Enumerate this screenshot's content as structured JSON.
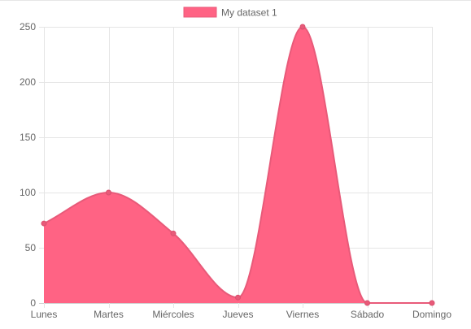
{
  "chart_data": {
    "type": "area",
    "categories": [
      "Lunes",
      "Martes",
      "Miércoles",
      "Jueves",
      "Viernes",
      "Sábado",
      "Domingo"
    ],
    "series": [
      {
        "name": "My dataset 1",
        "values": [
          72,
          100,
          63,
          5,
          250,
          0,
          0
        ]
      }
    ],
    "title": "",
    "xlabel": "",
    "ylabel": "",
    "ylim": [
      0,
      250
    ],
    "yticks": [
      0,
      50,
      100,
      150,
      200,
      250
    ],
    "grid": true,
    "legend": "top-center",
    "colors": {
      "fill": "#ff6384",
      "line": "#e85a79",
      "point": "#e85a79",
      "grid": "#e5e5e5",
      "tick_text": "#666666"
    },
    "curve": "smooth"
  }
}
